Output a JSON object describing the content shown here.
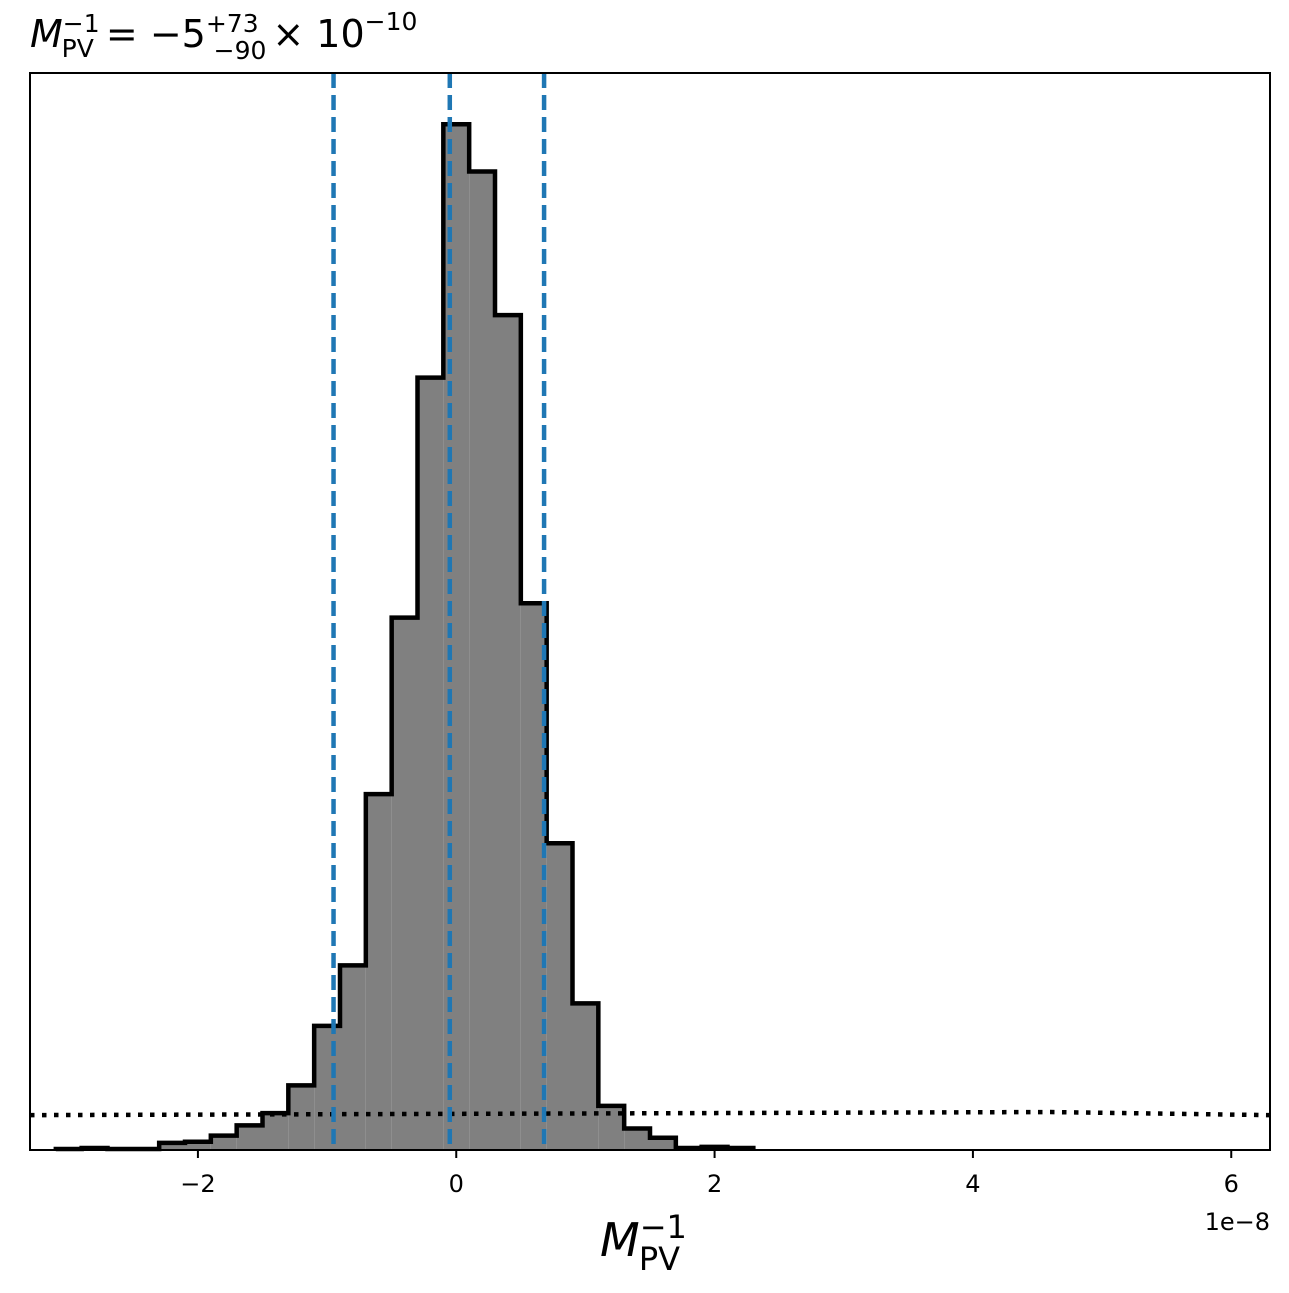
{
  "chart_data": {
    "type": "histogram",
    "title": {
      "symbol": "M",
      "symbol_superscript": "−1",
      "symbol_subscript": "PV",
      "equals": " = −5",
      "value_superscript": "+73",
      "value_subscript": "−90",
      "multiplier": "× 10",
      "multiplier_exponent": "−10"
    },
    "xlabel": {
      "symbol": "M",
      "superscript": "−1",
      "subscript": "PV"
    },
    "x_offset_label": "1e−8",
    "xlim": [
      -3.3,
      6.3
    ],
    "x_units_scale": "1e-8",
    "ylim": [
      0,
      1.05
    ],
    "x_ticks": [
      -2,
      0,
      2,
      4,
      6
    ],
    "x_tick_labels": [
      "−2",
      "0",
      "2",
      "4",
      "6"
    ],
    "y_ticks": [],
    "bin_edges": [
      -3.1,
      -2.9,
      -2.7,
      -2.5,
      -2.3,
      -2.1,
      -1.9,
      -1.7,
      -1.5,
      -1.3,
      -1.1,
      -0.9,
      -0.7,
      -0.5,
      -0.3,
      -0.1,
      0.1,
      0.3,
      0.5,
      0.7,
      0.9,
      1.1,
      1.3,
      1.5,
      1.7,
      1.9,
      2.1,
      2.3
    ],
    "counts": [
      0.001,
      0.002,
      0.001,
      0.001,
      0.007,
      0.008,
      0.014,
      0.024,
      0.036,
      0.063,
      0.121,
      0.18,
      0.347,
      0.519,
      0.753,
      1.0,
      0.954,
      0.814,
      0.533,
      0.299,
      0.143,
      0.043,
      0.021,
      0.012,
      0.002,
      0.003,
      0.002
    ],
    "fill_color": "#808080",
    "edge_color": "#000000",
    "vlines": {
      "style": "dashed",
      "color": "#1f77b4",
      "x": [
        -0.95,
        -0.05,
        0.68
      ]
    },
    "prior_line": {
      "style": "dotted",
      "color": "#000000",
      "x": [
        -3.3,
        4.6,
        6.3
      ],
      "y": [
        0.034,
        0.037,
        0.034
      ]
    },
    "grid": false
  }
}
